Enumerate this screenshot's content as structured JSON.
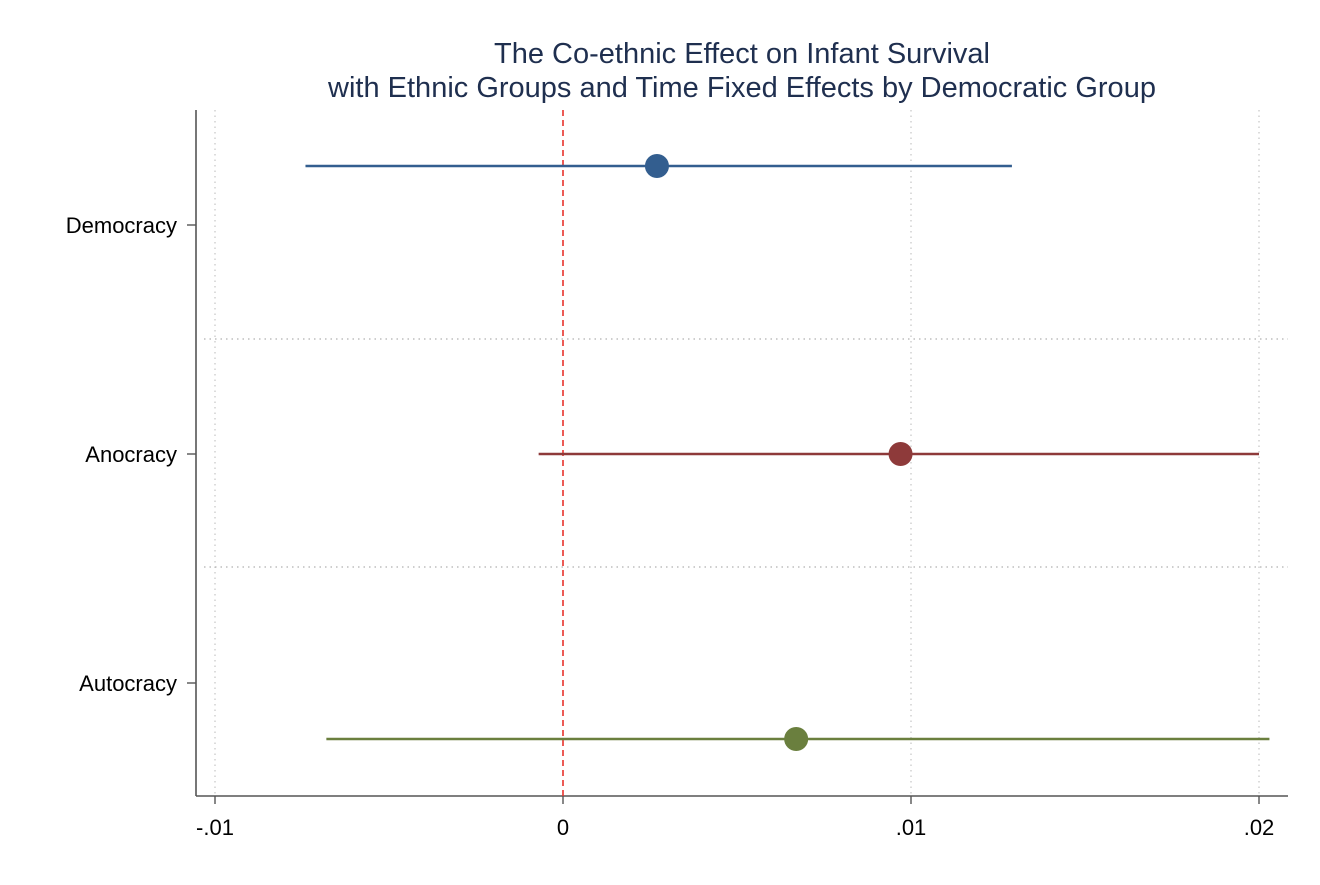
{
  "chart_data": {
    "type": "coefficient-plot",
    "title": [
      "The Co-ethnic Effect on Infant Survival",
      "with Ethnic Groups and Time Fixed Effects by Democratic Group"
    ],
    "xlabel": "",
    "ylabel": "",
    "xlim": [
      -0.01,
      0.0208
    ],
    "x_ticks": [
      {
        "value": -0.01,
        "label": "-.01"
      },
      {
        "value": 0,
        "label": "0"
      },
      {
        "value": 0.01,
        "label": ".01"
      },
      {
        "value": 0.02,
        "label": ".02"
      }
    ],
    "reference_line": {
      "x": 0,
      "style": "dashed",
      "color": "#e8322c"
    },
    "grid": {
      "vertical": true,
      "group_separators": true
    },
    "legend": "none",
    "groups": [
      {
        "label": "Democracy",
        "estimate": 0.0027,
        "ci_low": -0.0074,
        "ci_high": 0.0129,
        "color": "#335e8f"
      },
      {
        "label": "Anocracy",
        "estimate": 0.0097,
        "ci_low": -0.0007,
        "ci_high": 0.02,
        "color": "#8e3a3a"
      },
      {
        "label": "Autocracy",
        "estimate": 0.0067,
        "ci_low": -0.0068,
        "ci_high": 0.0203,
        "color": "#6a7f3e"
      }
    ]
  }
}
